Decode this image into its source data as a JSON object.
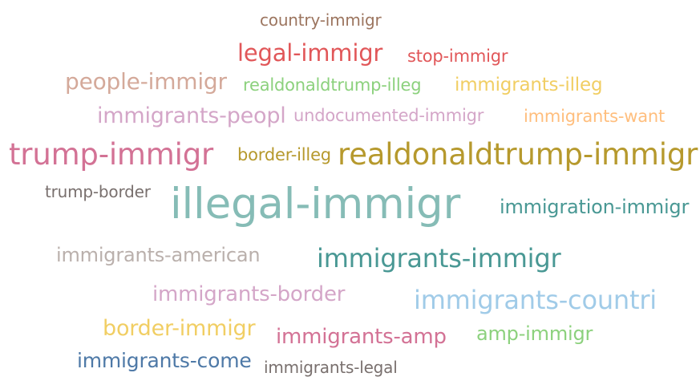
{
  "words": [
    {
      "text": "country-immigr",
      "color": "#9c755f"
    },
    {
      "text": "legal-immigr",
      "color": "#e15759"
    },
    {
      "text": "stop-immigr",
      "color": "#e15759"
    },
    {
      "text": "people-immigr",
      "color": "#d4a99a"
    },
    {
      "text": "realdonaldtrump-illeg",
      "color": "#8cd17d"
    },
    {
      "text": "immigrants-illeg",
      "color": "#f1ce63"
    },
    {
      "text": "immigrants-peopl",
      "color": "#d4a6c8"
    },
    {
      "text": "undocumented-immigr",
      "color": "#d4a6c8"
    },
    {
      "text": "immigrants-want",
      "color": "#ffbe7d"
    },
    {
      "text": "trump-immigr",
      "color": "#d37295"
    },
    {
      "text": "border-illeg",
      "color": "#b6992d"
    },
    {
      "text": "realdonaldtrump-immigr",
      "color": "#b6992d"
    },
    {
      "text": "trump-border",
      "color": "#79706e"
    },
    {
      "text": "illegal-immigr",
      "color": "#86bcb6"
    },
    {
      "text": "immigration-immigr",
      "color": "#499894"
    },
    {
      "text": "immigrants-american",
      "color": "#bab0ac"
    },
    {
      "text": "immigrants-immigr",
      "color": "#499894"
    },
    {
      "text": "immigrants-border",
      "color": "#d4a6c8"
    },
    {
      "text": "immigrants-countri",
      "color": "#a0cbe8"
    },
    {
      "text": "border-immigr",
      "color": "#f1ce63"
    },
    {
      "text": "immigrants-amp",
      "color": "#d37295"
    },
    {
      "text": "amp-immigr",
      "color": "#8cd17d"
    },
    {
      "text": "immigrants-come",
      "color": "#4e79a7"
    },
    {
      "text": "immigrants-legal",
      "color": "#79706e"
    }
  ]
}
